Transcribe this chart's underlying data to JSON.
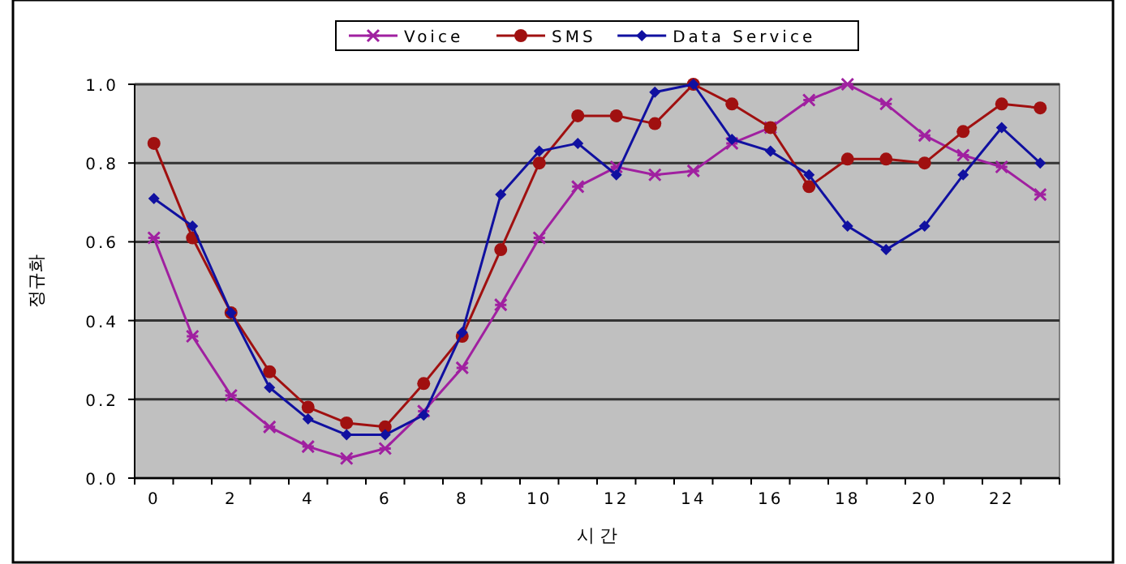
{
  "chart_data": {
    "type": "line",
    "xlabel": "시 간",
    "ylabel": "정규화",
    "categories": [
      "0",
      null,
      "2",
      null,
      "4",
      null,
      "6",
      null,
      "8",
      null,
      "10",
      null,
      "12",
      null,
      "14",
      null,
      "16",
      null,
      "18",
      null,
      "20",
      null,
      "22",
      null
    ],
    "series": [
      {
        "name": "Voice",
        "color": "#a020a0",
        "marker": "cross",
        "values": [
          0.61,
          0.36,
          0.21,
          0.13,
          0.08,
          0.05,
          0.075,
          0.17,
          0.28,
          0.44,
          0.61,
          0.74,
          0.79,
          0.77,
          0.78,
          0.85,
          0.89,
          0.96,
          1.0,
          0.95,
          0.87,
          0.82,
          0.79,
          0.72
        ]
      },
      {
        "name": "SMS",
        "color": "#a01010",
        "marker": "circle",
        "values": [
          0.85,
          0.61,
          0.42,
          0.27,
          0.18,
          0.14,
          0.13,
          0.24,
          0.36,
          0.58,
          0.8,
          0.92,
          0.92,
          0.9,
          1.0,
          0.95,
          0.89,
          0.74,
          0.81,
          0.81,
          0.8,
          0.88,
          0.95,
          0.94
        ]
      },
      {
        "name": "Data Service",
        "color": "#1010a0",
        "marker": "diamond",
        "values": [
          0.71,
          0.64,
          0.42,
          0.23,
          0.15,
          0.11,
          0.11,
          0.16,
          0.37,
          0.72,
          0.83,
          0.85,
          0.77,
          0.98,
          1.0,
          0.86,
          0.83,
          0.77,
          0.64,
          0.58,
          0.64,
          0.77,
          0.89,
          0.8
        ]
      }
    ],
    "ylim": [
      0,
      1
    ],
    "yticks": [
      {
        "value": 0,
        "label": "0.0"
      },
      {
        "value": 0.2,
        "label": "0.2"
      },
      {
        "value": 0.4,
        "label": "0.4"
      },
      {
        "value": 0.6,
        "label": "0.6"
      },
      {
        "value": 0.8,
        "label": "0.8"
      },
      {
        "value": 1,
        "label": "1.0"
      }
    ],
    "grid": "y",
    "legend": "top",
    "line_style": "solid"
  }
}
